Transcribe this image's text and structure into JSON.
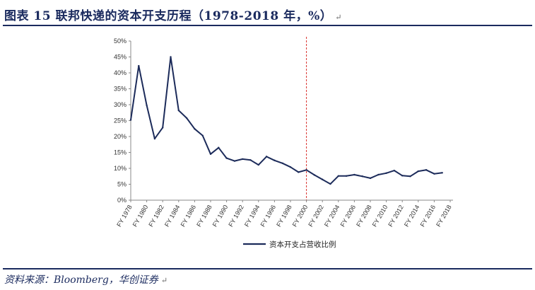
{
  "header": {
    "title": "图表 15  联邦快递的资本开支历程（1978-2018 年，%）",
    "para_mark": "↵"
  },
  "footer": {
    "source": "资料来源：Bloomberg，华创证券"
  },
  "colors": {
    "line": "#1c2b5a",
    "marker": "#d9302c",
    "rule": "#1a2a5e"
  },
  "chart_data": {
    "type": "line",
    "x": [
      "FY 1978",
      "FY 1979",
      "FY 1980",
      "FY 1981",
      "FY 1982",
      "FY 1983",
      "FY 1984",
      "FY 1985",
      "FY 1986",
      "FY 1987",
      "FY 1988",
      "FY 1989",
      "FY 1990",
      "FY 1991",
      "FY 1992",
      "FY 1993",
      "FY 1994",
      "FY 1995",
      "FY 1996",
      "FY 1997",
      "FY 1998",
      "FY 1999",
      "FY 2000",
      "FY 2001",
      "FY 2002",
      "FY 2003",
      "FY 2004",
      "FY 2005",
      "FY 2006",
      "FY 2007",
      "FY 2008",
      "FY 2009",
      "FY 2010",
      "FY 2011",
      "FY 2012",
      "FY 2013",
      "FY 2014",
      "FY 2015",
      "FY 2016",
      "FY 2017",
      "FY 2018"
    ],
    "x_tick_labels": [
      "FY 1978",
      "FY 1980",
      "FY 1982",
      "FY 1984",
      "FY 1986",
      "FY 1988",
      "FY 1990",
      "FY 1992",
      "FY 1994",
      "FY 1996",
      "FY 1998",
      "FY 2000",
      "FY 2002",
      "FY 2004",
      "FY 2006",
      "FY 2008",
      "FY 2010",
      "FY 2012",
      "FY 2014",
      "FY 2016",
      "FY 2018"
    ],
    "series": [
      {
        "name": "资本开支占营收比例",
        "values": [
          25.2,
          42.2,
          29.8,
          19.3,
          22.8,
          45.0,
          28.2,
          25.8,
          22.4,
          20.3,
          14.5,
          16.5,
          13.2,
          12.3,
          12.9,
          12.6,
          11.1,
          13.7,
          12.5,
          11.6,
          10.4,
          8.8,
          9.5,
          7.9,
          6.5,
          5.1,
          7.6,
          7.6,
          8.0,
          7.5,
          6.9,
          8.0,
          8.5,
          9.3,
          7.7,
          7.5,
          9.1,
          9.5,
          8.3,
          8.6,
          null
        ]
      }
    ],
    "y_ticks": [
      "0%",
      "5%",
      "10%",
      "15%",
      "20%",
      "25%",
      "30%",
      "35%",
      "40%",
      "45%",
      "50%"
    ],
    "ylim": [
      0,
      50
    ],
    "reference_line": {
      "x": "FY 2000",
      "style": "dashed",
      "color": "#d9302c"
    },
    "legend_position": "bottom-center",
    "grid": false
  }
}
